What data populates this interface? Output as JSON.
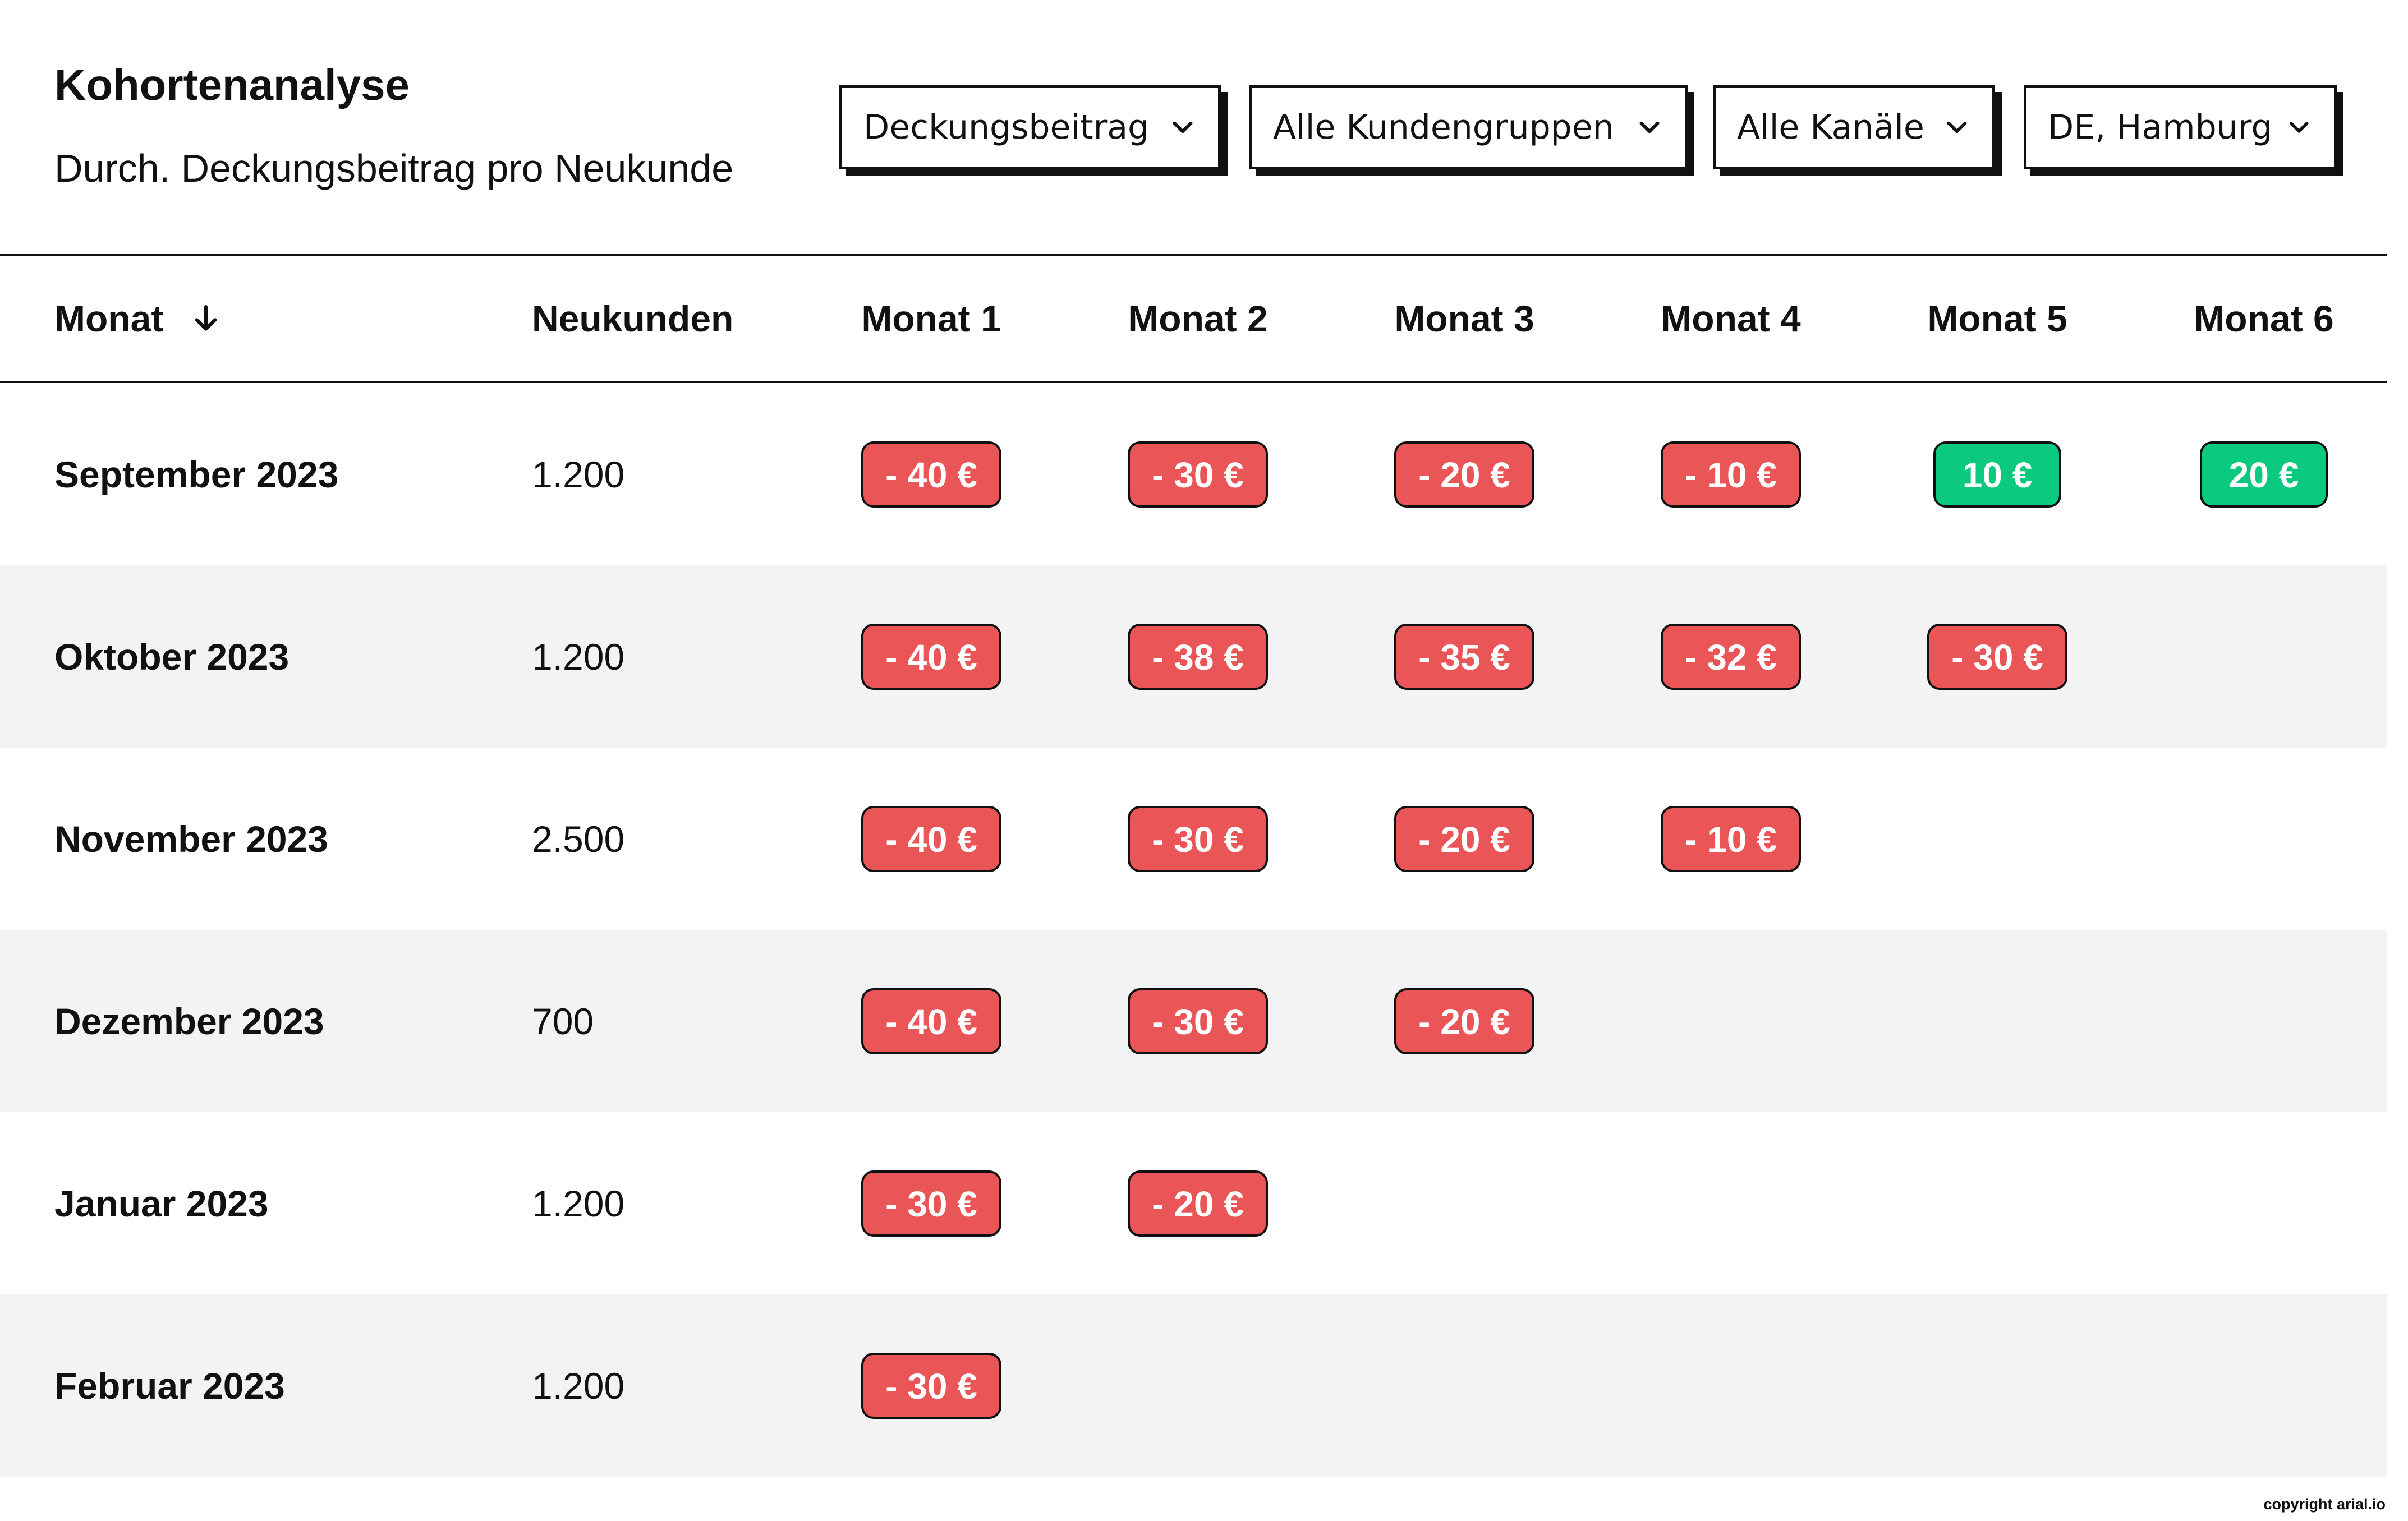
{
  "header": {
    "title": "Kohortenanalyse",
    "subtitle": "Durch. Deckungsbeitrag pro Neukunde"
  },
  "filters": {
    "metric": "Deckungsbeitrag",
    "customer_group": "Alle Kundengruppen",
    "channel": "Alle Kanäle",
    "location": "DE, Hamburg"
  },
  "table": {
    "columns": [
      "Monat",
      "Neukunden",
      "Monat 1",
      "Monat 2",
      "Monat 3",
      "Monat 4",
      "Monat 5",
      "Monat 6"
    ],
    "sort_direction": "descending",
    "rows": [
      {
        "month": "September 2023",
        "new_customers": "1.200",
        "values": [
          "- 40 €",
          "- 30 €",
          "- 20 €",
          "- 10 €",
          "10 €",
          "20 €"
        ]
      },
      {
        "month": "Oktober 2023",
        "new_customers": "1.200",
        "values": [
          "- 40 €",
          "- 38 €",
          "- 35 €",
          "- 32 €",
          "- 30 €"
        ]
      },
      {
        "month": "November 2023",
        "new_customers": "2.500",
        "values": [
          "- 40 €",
          "- 30 €",
          "- 20 €",
          "- 10 €"
        ]
      },
      {
        "month": "Dezember 2023",
        "new_customers": "700",
        "values": [
          "- 40 €",
          "- 30 €",
          "- 20 €"
        ]
      },
      {
        "month": "Januar 2023",
        "new_customers": "1.200",
        "values": [
          "- 30 €",
          "- 20 €"
        ]
      },
      {
        "month": "Februar 2023",
        "new_customers": "1.200",
        "values": [
          "- 30 €"
        ]
      }
    ]
  },
  "colors": {
    "negative": "#ea5657",
    "positive": "#0bc97e",
    "row_shade": "#f3f3f3"
  },
  "icons": {
    "dropdown": "chevron-down-icon",
    "sort": "arrow-down-icon"
  },
  "footer": {
    "copyright": "copyright arial.io"
  }
}
